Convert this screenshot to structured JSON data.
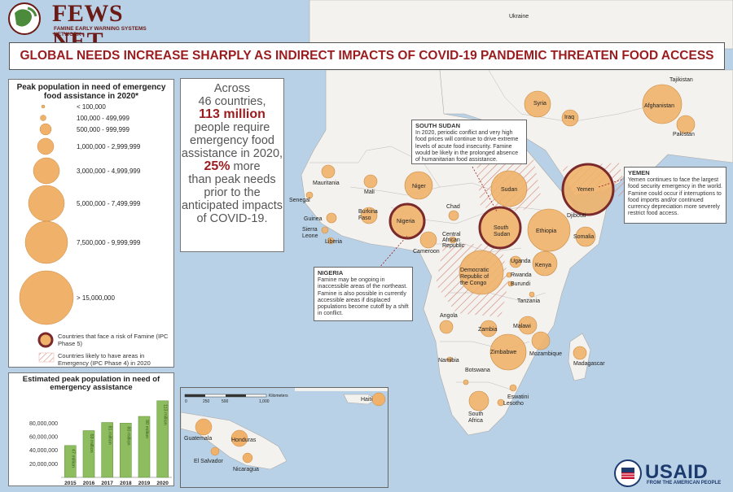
{
  "header": {
    "logo_name": "FEWS NET",
    "logo_subtitle": "FAMINE EARLY WARNING SYSTEMS NETWORK",
    "title": "GLOBAL NEEDS INCREASE SHARPLY AS INDIRECT IMPACTS OF COVID-19 PANDEMIC THREATEN FOOD ACCESS"
  },
  "legend": {
    "title": "Peak population in need of emergency food assistance in 2020*",
    "sizes": [
      "< 100,000",
      "100,000 - 499,999",
      "500,000 - 999,999",
      "1,000,000 - 2,999,999",
      "3,000,000 - 4,999,999",
      "5,000,000 - 7,499,999",
      "7,500,000 - 9,999,999",
      "> 15,000,000"
    ],
    "famine_risk": "Countries that face a risk of Famine (IPC Phase 5)",
    "emergency_areas": "Countries likely to have areas in Emergency (IPC Phase 4) in 2020"
  },
  "callout": {
    "line1": "Across",
    "line2": "46 countries,",
    "highlight1": "113 million",
    "line3": "people require emergency food assistance in 2020,",
    "highlight2": "25%",
    "highlight2_suffix": "more",
    "line4": "than peak needs prior to the anticipated impacts of COVID-19."
  },
  "chart_data": {
    "type": "bar",
    "title": "Estimated peak population in need of emergency assistance",
    "categories": [
      "2015",
      "2016",
      "2017",
      "2018",
      "2019",
      "2020"
    ],
    "values": [
      47000000,
      69000000,
      81000000,
      80000000,
      90000000,
      113000000
    ],
    "data_labels": [
      "47 million",
      "69 million",
      "81 million",
      "80 million",
      "90 million",
      "113 million"
    ],
    "yticks": [
      "20,000,000",
      "40,000,000",
      "60,000,000",
      "80,000,000"
    ],
    "ylim": [
      0,
      120000000
    ],
    "bar_color": "#8dbd5e",
    "grid": false
  },
  "notes": {
    "south_sudan": {
      "title": "SOUTH SUDAN",
      "text": "In 2020, periodic conflict and very high food prices will continue to drive extreme levels of acute food insecurity. Famine would be likely in the prolonged absence of humanitarian food assistance."
    },
    "yemen": {
      "title": "YEMEN",
      "text": "Yemen continues to face the largest food security emergency in the world. Famine could occur if interruptions to food imports and/or continued currency depreciation more severely restrict food access."
    },
    "nigeria": {
      "title": "NIGERIA",
      "text": "Famine may be ongoing in inaccessible areas of the northeast. Famine is also possible in currently accessible areas if displaced populations become cutoff by a shift in conflict."
    }
  },
  "countries": [
    "Ukraine",
    "Tajikistan",
    "Syria",
    "Afghanistan",
    "Iraq",
    "Pakistan",
    "Mauritania",
    "Mali",
    "Niger",
    "Senegal",
    "Burkina Faso",
    "Nigeria",
    "Chad",
    "Sudan",
    "Yemen",
    "Guinea",
    "Sierra Leone",
    "Liberia",
    "Cameroon",
    "Central African Republic",
    "South Sudan",
    "Ethiopia",
    "Djibouti",
    "Somalia",
    "Democratic Republic of the Congo",
    "Uganda",
    "Kenya",
    "Rwanda",
    "Burundi",
    "Tanzania",
    "Angola",
    "Zambia",
    "Malawi",
    "Zimbabwe",
    "Mozambique",
    "Madagascar",
    "Namibia",
    "Botswana",
    "Eswatini",
    "Lesotho",
    "South Africa",
    "Haiti",
    "Guatemala",
    "Honduras",
    "El Salvador",
    "Nicaragua"
  ],
  "inset": {
    "scale_unit": "Kilometers",
    "scale_ticks": [
      "0",
      "250",
      "500",
      "1,000"
    ]
  },
  "footer": {
    "usaid_name": "USAID",
    "usaid_sub": "FROM THE AMERICAN PEOPLE"
  },
  "colors": {
    "circle": "#f0b26a",
    "circle_stroke": "#c98a42",
    "famine_ring": "#7a2a2a",
    "title": "#9a1c1f",
    "water": "#b8d1e6",
    "land": "#f4f2ee"
  }
}
